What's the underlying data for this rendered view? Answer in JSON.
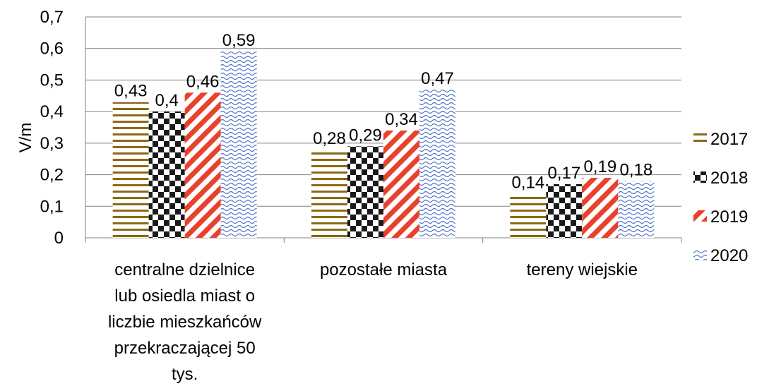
{
  "chart_data": {
    "type": "bar",
    "ylabel": "V/m",
    "xlabel": "",
    "ylim": [
      0,
      0.7
    ],
    "yticks": [
      0,
      0.1,
      0.2,
      0.3,
      0.4,
      0.5,
      0.6,
      0.7
    ],
    "ytick_labels": [
      "0",
      "0,1",
      "0,2",
      "0,3",
      "0,4",
      "0,5",
      "0,6",
      "0,7"
    ],
    "grid": true,
    "legend_position": "right",
    "categories": [
      [
        "centralne dzielnice",
        "lub osiedla miast o",
        "liczbie mieszkańców",
        "przekraczającej 50",
        "tys."
      ],
      [
        "pozostałe miasta"
      ],
      [
        "tereny wiejskie"
      ]
    ],
    "series": [
      {
        "name": "2017",
        "values": [
          0.43,
          0.28,
          0.14
        ],
        "labels": [
          "0,43",
          "0,28",
          "0,14"
        ],
        "color": "#8B6914",
        "pattern": "horizontal-lines"
      },
      {
        "name": "2018",
        "values": [
          0.4,
          0.29,
          0.17
        ],
        "labels": [
          "0,4",
          "0,29",
          "0,17"
        ],
        "color": "#1a1a1a",
        "pattern": "checkerboard"
      },
      {
        "name": "2019",
        "values": [
          0.46,
          0.34,
          0.19
        ],
        "labels": [
          "0,46",
          "0,34",
          "0,19"
        ],
        "color": "#E8412C",
        "pattern": "diagonal-stripes"
      },
      {
        "name": "2020",
        "values": [
          0.59,
          0.47,
          0.18
        ],
        "labels": [
          "0,59",
          "0,47",
          "0,18"
        ],
        "color": "#4A72C8",
        "pattern": "waves"
      }
    ]
  }
}
